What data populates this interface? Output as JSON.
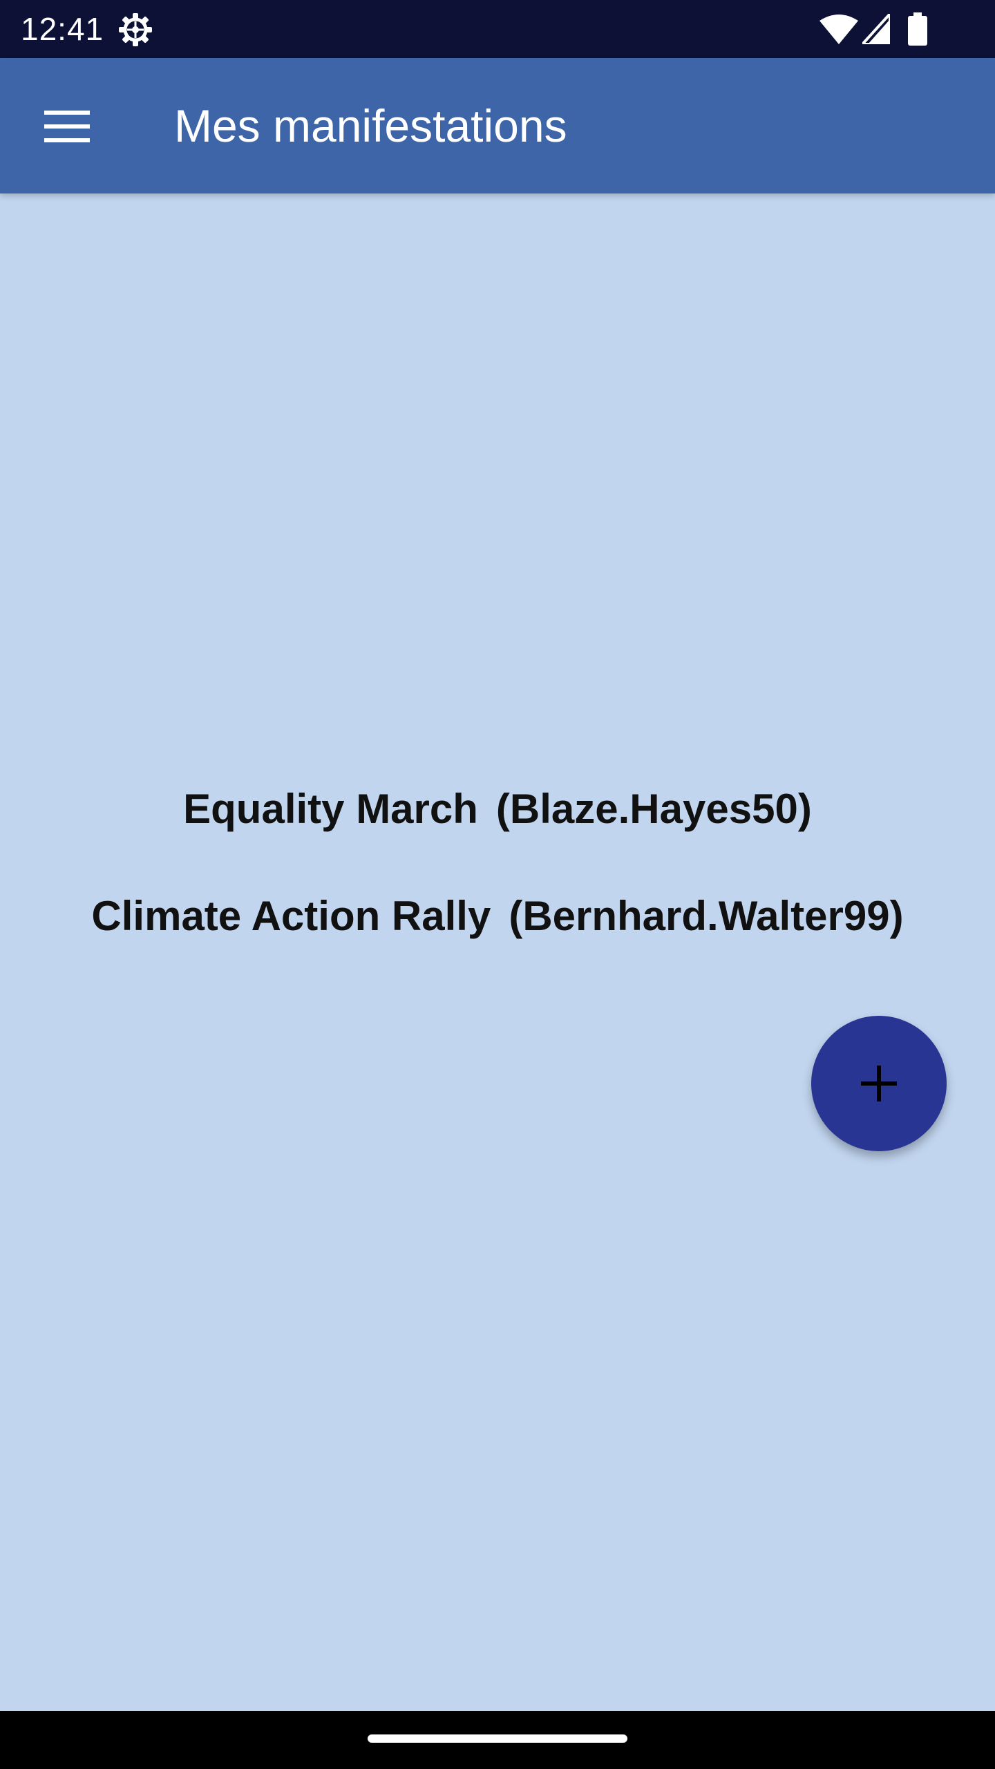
{
  "status_bar": {
    "time": "12:41",
    "icons": [
      "settings-gear-icon",
      "wifi-icon",
      "cell-signal-icon",
      "battery-icon"
    ]
  },
  "app_bar": {
    "menu_icon": "menu-icon",
    "title": "Mes manifestations"
  },
  "events": [
    {
      "name": "Equality March",
      "organizer": "(Blaze.Hayes50)"
    },
    {
      "name": "Climate Action Rally",
      "organizer": "(Bernhard.Walter99)"
    }
  ],
  "fab": {
    "icon": "plus-icon"
  },
  "colors": {
    "status_bar": "#0c1135",
    "app_bar": "#3f65a9",
    "background": "#c1d5ef",
    "fab": "#283593",
    "nav_bar": "#000000"
  }
}
